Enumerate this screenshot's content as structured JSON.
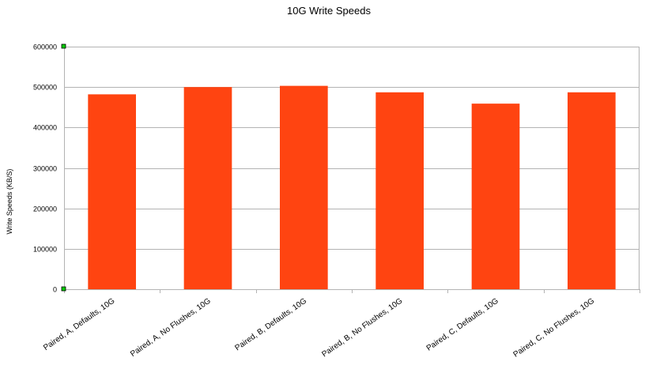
{
  "chart_data": {
    "type": "bar",
    "title": "10G Write Speeds",
    "xlabel": "",
    "ylabel": "Write Speeds (KB/S)",
    "categories": [
      "Paired, A, Defaults, 10G",
      "Paired, A, No Flushes, 10G",
      "Paired, B, Defaults, 10G",
      "Paired, B, No Flushes, 10G",
      "Paired, C, Defaults, 10G",
      "Paired, C, No Flushes, 10G"
    ],
    "values": [
      482000,
      500000,
      503000,
      487000,
      459000,
      487000
    ],
    "ylim": [
      0,
      600000
    ],
    "yticks": [
      0,
      100000,
      200000,
      300000,
      400000,
      500000,
      600000
    ],
    "ytick_labels": [
      "0",
      "100000",
      "200000",
      "300000",
      "400000",
      "500000",
      "600000"
    ],
    "grid": true,
    "legend": "none",
    "colors": {
      "bar": "#ff4411",
      "gridline": "#b3b3b3",
      "axis": "#b3b3b3",
      "handle_fill": "#00cc00",
      "handle_stroke": "#000000"
    }
  }
}
